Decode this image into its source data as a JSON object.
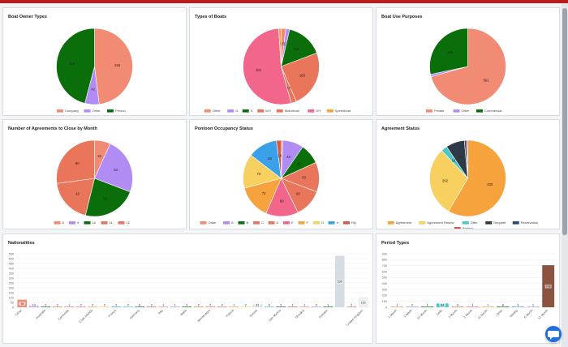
{
  "colors": {
    "salmon": "#f28b74",
    "purple": "#b18cf5",
    "green": "#0a6f0a",
    "coral": "#e9765a",
    "pink": "#f2668b",
    "orange": "#f7a33d",
    "yellow": "#f7d060",
    "blue": "#3aa0e8",
    "teal": "#4bc7c7",
    "navy": "#2b4a72",
    "darkgray": "#2f3a47",
    "red": "#d35a4a",
    "brown": "#8a5440",
    "rosy": "#d98585"
  },
  "cards": [
    {
      "title": "Boat Owner Types",
      "type": "pie",
      "slices": [
        {
          "label": "Company",
          "value": 334,
          "color": "#f28b74"
        },
        {
          "label": "Other",
          "value": 42,
          "color": "#b18cf5"
        },
        {
          "label": "Person",
          "value": 319,
          "color": "#0a6f0a"
        }
      ]
    },
    {
      "title": "Types of Boats",
      "type": "pie",
      "slices": [
        {
          "label": "Other",
          "value": 15,
          "color": "#f28b74"
        },
        {
          "label": "G",
          "value": 12,
          "color": "#b18cf5"
        },
        {
          "label": "K",
          "value": 118,
          "color": "#0a6f0a"
        },
        {
          "label": "M/Y",
          "value": 183,
          "color": "#e9765a"
        },
        {
          "label": "Motorboat",
          "value": 17,
          "color": "#e9765a"
        },
        {
          "label": "S/Y",
          "value": 401,
          "color": "#f2668b"
        },
        {
          "label": "Speedboat",
          "value": 8,
          "color": "#f7a33d"
        }
      ]
    },
    {
      "title": "Boat Use Purposes",
      "type": "pie",
      "slices": [
        {
          "label": "Private",
          "value": 561,
          "color": "#f28b74"
        },
        {
          "label": "Other",
          "value": 8,
          "color": "#b18cf5"
        },
        {
          "label": "Commercial",
          "value": 225,
          "color": "#0a6f0a"
        }
      ]
    },
    {
      "title": "Number of Agreements to Close by Month",
      "type": "pie",
      "slices": [
        {
          "label": "8",
          "value": 15,
          "color": "#f28b74"
        },
        {
          "label": "9",
          "value": 53,
          "color": "#b18cf5"
        },
        {
          "label": "10",
          "value": 51,
          "color": "#0a6f0a"
        },
        {
          "label": "11",
          "value": 42,
          "color": "#e9765a"
        },
        {
          "label": "12",
          "value": 60,
          "color": "#e9765a"
        }
      ]
    },
    {
      "title": "Pontoon Occupancy Status",
      "type": "pie",
      "slices": [
        {
          "label": "Other",
          "value": 4,
          "color": "#f28b74"
        },
        {
          "label": "A",
          "value": 44,
          "color": "#b18cf5"
        },
        {
          "label": "B",
          "value": 43,
          "color": "#0a6f0a"
        },
        {
          "label": "C",
          "value": 63,
          "color": "#e9765a"
        },
        {
          "label": "D",
          "value": 60,
          "color": "#e9765a"
        },
        {
          "label": "E",
          "value": 69,
          "color": "#f2668b"
        },
        {
          "label": "F",
          "value": 72,
          "color": "#f7a33d"
        },
        {
          "label": "G",
          "value": 73,
          "color": "#f7d060"
        },
        {
          "label": "H",
          "value": 63,
          "color": "#3aa0e8"
        },
        {
          "label": "Rly",
          "value": 10,
          "color": "#d35a4a"
        }
      ]
    },
    {
      "title": "Agreement Status",
      "type": "pie",
      "slices": [
        {
          "label": "Agreement",
          "value": 400,
          "color": "#f7a33d"
        },
        {
          "label": "Agreement Renew",
          "value": 202,
          "color": "#f7d060"
        },
        {
          "label": "Offer",
          "value": 18,
          "color": "#4bc7c7"
        },
        {
          "label": "Request",
          "value": 54,
          "color": "#2f3a47"
        },
        {
          "label": "Reservation",
          "value": 6,
          "color": "#2b4a72"
        },
        {
          "label": "Waiting",
          "value": 4,
          "color": "#d35a4a"
        }
      ]
    }
  ],
  "nationalities": {
    "title": "Nationalities",
    "yticks": [
      "0",
      "50",
      "100",
      "150",
      "200",
      "250",
      "300",
      "350",
      "400",
      "450",
      "500",
      "550"
    ],
    "ymax": 550,
    "bars": [
      {
        "label": "Other",
        "value": 78,
        "color": "#f28b74"
      },
      {
        "label": "",
        "value": 13,
        "color": "#b18cf5"
      },
      {
        "label": "Australia",
        "value": 2,
        "color": "#0a6f0a"
      },
      {
        "label": "",
        "value": 2,
        "color": "#e9765a"
      },
      {
        "label": "Cambodia",
        "value": 1,
        "color": "#e9765a"
      },
      {
        "label": "",
        "value": 2,
        "color": "#f2668b"
      },
      {
        "label": "Cook Islands",
        "value": 2,
        "color": "#f7a33d"
      },
      {
        "label": "",
        "value": 2,
        "color": "#f7d060"
      },
      {
        "label": "France",
        "value": 2,
        "color": "#3aa0e8"
      },
      {
        "label": "",
        "value": 2,
        "color": "#4bc7c7"
      },
      {
        "label": "Germany",
        "value": 6,
        "color": "#2b4a72"
      },
      {
        "label": "",
        "value": 2,
        "color": "#d35a4a"
      },
      {
        "label": "Italy",
        "value": 1,
        "color": "#f28b74"
      },
      {
        "label": "",
        "value": 1,
        "color": "#b18cf5"
      },
      {
        "label": "Malta",
        "value": 2,
        "color": "#0a6f0a"
      },
      {
        "label": "",
        "value": 2,
        "color": "#e9765a"
      },
      {
        "label": "Montenegro",
        "value": 2,
        "color": "#e9765a"
      },
      {
        "label": "",
        "value": 2,
        "color": "#f2668b"
      },
      {
        "label": "Poland",
        "value": 1,
        "color": "#f7a33d"
      },
      {
        "label": "",
        "value": 2,
        "color": "#f7d060"
      },
      {
        "label": "Russia",
        "value": 31,
        "color": "#d9d9d9"
      },
      {
        "label": "",
        "value": 6,
        "color": "#4bc7c7"
      },
      {
        "label": "San Marino",
        "value": 2,
        "color": "#2b4a72"
      },
      {
        "label": "",
        "value": 1,
        "color": "#d35a4a"
      },
      {
        "label": "Slovakia",
        "value": 1,
        "color": "#f28b74"
      },
      {
        "label": "",
        "value": 2,
        "color": "#b18cf5"
      },
      {
        "label": "Sweden",
        "value": 1,
        "color": "#0a6f0a"
      },
      {
        "label": "",
        "value": 530,
        "color": "#d5dde3"
      },
      {
        "label": "",
        "value": 2,
        "color": "#e9765a"
      },
      {
        "label": "United Kingdom",
        "value": 102,
        "color": "#eeeeee"
      }
    ]
  },
  "period_types": {
    "title": "Period Types",
    "yticks": [
      "0",
      "100",
      "200",
      "300",
      "400",
      "500",
      "600",
      "700",
      "800",
      "900"
    ],
    "ymax": 900,
    "bars": [
      {
        "label": "1 Month",
        "value": 1,
        "color": "#f28b74"
      },
      {
        "label": "1 Week",
        "value": 2,
        "color": "#b18cf5"
      },
      {
        "label": "10 Month",
        "value": 1,
        "color": "#0a6f0a"
      },
      {
        "label": "Daily",
        "value": 64,
        "color": "#4bc7c7"
      },
      {
        "label": "3 Month",
        "value": 3,
        "color": "#e9765a"
      },
      {
        "label": "2 Month",
        "value": 1,
        "color": "#f2668b"
      },
      {
        "label": "11 Month",
        "value": 1,
        "color": "#f7a33d"
      },
      {
        "label": "Other",
        "value": 8,
        "color": "#0a6f0a"
      },
      {
        "label": "Weekly",
        "value": 3,
        "color": "#3aa0e8"
      },
      {
        "label": "6 Month",
        "value": 1,
        "color": "#b18cf5"
      },
      {
        "label": "12 Month",
        "value": 708,
        "color": "#8a5440"
      }
    ]
  }
}
